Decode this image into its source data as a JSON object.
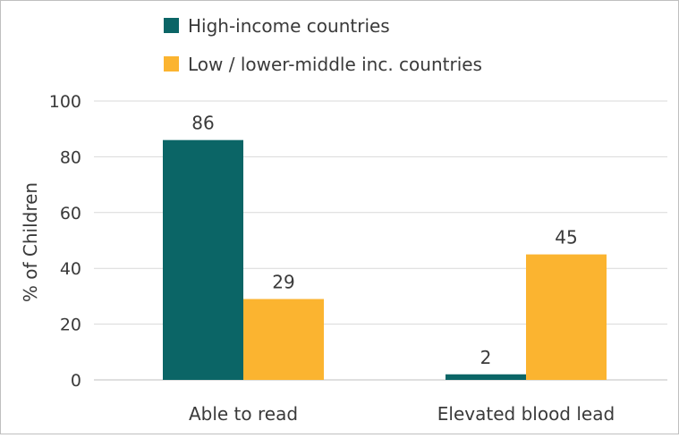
{
  "chart_data": {
    "type": "bar",
    "title": "",
    "xlabel": "",
    "ylabel": "% of Children",
    "ylim": [
      0,
      100
    ],
    "yticks": [
      0,
      20,
      40,
      60,
      80,
      100
    ],
    "grid": true,
    "legend_position": "top",
    "categories": [
      "Able to read",
      "Elevated blood lead"
    ],
    "series": [
      {
        "name": "High-income countries",
        "color": "#0b6566",
        "values": [
          86,
          2
        ]
      },
      {
        "name": "Low / lower-middle inc. countries",
        "color": "#fbb430",
        "values": [
          29,
          45
        ]
      }
    ]
  }
}
